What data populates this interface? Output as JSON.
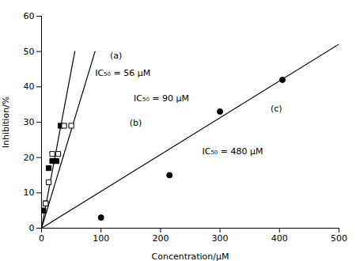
{
  "chart_data": {
    "type": "scatter",
    "xlabel": "Concentration/μM",
    "ylabel": "Inhibition/%",
    "xlim": [
      0,
      500
    ],
    "ylim": [
      0,
      60
    ],
    "xticks": [
      0,
      100,
      200,
      300,
      400,
      500
    ],
    "yticks": [
      0,
      10,
      20,
      30,
      40,
      50,
      60
    ],
    "series": [
      {
        "x": [
          3,
          7,
          12,
          18,
          25,
          32
        ],
        "values": [
          5,
          7,
          17,
          19,
          19,
          29
        ],
        "color": "#000000",
        "marker": "square",
        "fit": {
          "x": [
            0,
            55.99104143337066
          ],
          "y": [
            0,
            50
          ]
        }
      },
      {
        "x": [
          7,
          12,
          18,
          28,
          38,
          50
        ],
        "values": [
          7,
          13,
          21,
          21,
          29,
          29
        ],
        "color": "#000000",
        "marker": "open_square",
        "fit": {
          "x": [
            0,
            89.92805755395683
          ],
          "y": [
            0,
            50
          ]
        }
      },
      {
        "x": [
          100,
          215,
          300,
          405
        ],
        "values": [
          3,
          15,
          33,
          42
        ],
        "color": "#000000",
        "marker": "circle",
        "fit": {
          "x": [
            0,
            500
          ],
          "y": [
            0,
            52.1
          ]
        }
      }
    ],
    "annotations": [
      {
        "text": "IC₅₀ = 56 μM",
        "x": 90,
        "y": 43
      },
      {
        "text": "(a)",
        "x": 115,
        "y": 48
      },
      {
        "text": "IC₅₀ = 90 μM",
        "x": 155,
        "y": 36
      },
      {
        "text": "(b)",
        "x": 148,
        "y": 29
      },
      {
        "text": "IC₅₀ = 480 μM",
        "x": 270,
        "y": 21
      },
      {
        "text": "(c)",
        "x": 385,
        "y": 33
      }
    ]
  }
}
